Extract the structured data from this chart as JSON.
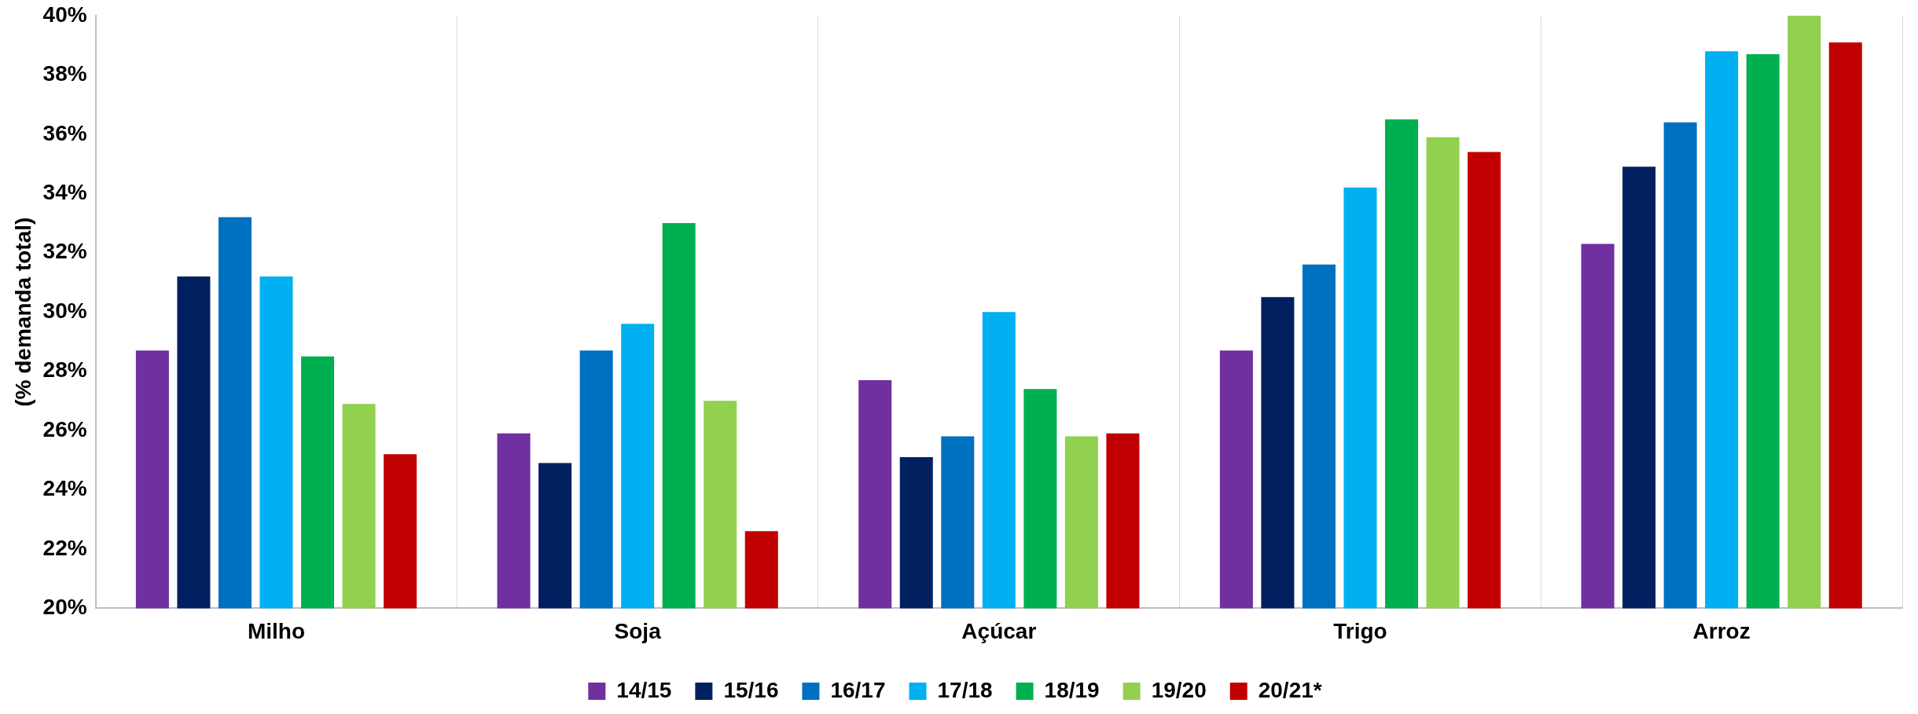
{
  "chart_data": {
    "type": "bar",
    "ylabel": "(% demanda total)",
    "categories": [
      "Milho",
      "Soja",
      "Açúcar",
      "Trigo",
      "Arroz"
    ],
    "series": [
      {
        "name": "14/15",
        "color": "#7030a0",
        "values": [
          28.7,
          25.9,
          27.7,
          28.7,
          32.3
        ]
      },
      {
        "name": "15/16",
        "color": "#002060",
        "values": [
          31.2,
          24.9,
          25.1,
          30.5,
          34.9
        ]
      },
      {
        "name": "16/17",
        "color": "#0070c0",
        "values": [
          33.2,
          28.7,
          25.8,
          31.6,
          36.4
        ]
      },
      {
        "name": "17/18",
        "color": "#00b0f0",
        "values": [
          31.2,
          29.6,
          30.0,
          34.2,
          38.8
        ]
      },
      {
        "name": "18/19",
        "color": "#00b050",
        "values": [
          28.5,
          33.0,
          27.4,
          36.5,
          38.7
        ]
      },
      {
        "name": "19/20",
        "color": "#92d050",
        "values": [
          26.9,
          27.0,
          25.8,
          35.9,
          40.0
        ]
      },
      {
        "name": "20/21*",
        "color": "#c00000",
        "values": [
          25.2,
          22.6,
          25.9,
          35.4,
          39.1
        ]
      }
    ],
    "ylim": [
      20,
      40
    ],
    "yticks": [
      {
        "value": 20,
        "label": "20%"
      },
      {
        "value": 22,
        "label": "22%"
      },
      {
        "value": 24,
        "label": "24%"
      },
      {
        "value": 26,
        "label": "26%"
      },
      {
        "value": 28,
        "label": "28%"
      },
      {
        "value": 30,
        "label": "30%"
      },
      {
        "value": 32,
        "label": "32%"
      },
      {
        "value": 34,
        "label": "34%"
      },
      {
        "value": 36,
        "label": "36%"
      },
      {
        "value": 38,
        "label": "38%"
      },
      {
        "value": 40,
        "label": "40%"
      }
    ],
    "grid": "x",
    "legend": "bottom"
  }
}
